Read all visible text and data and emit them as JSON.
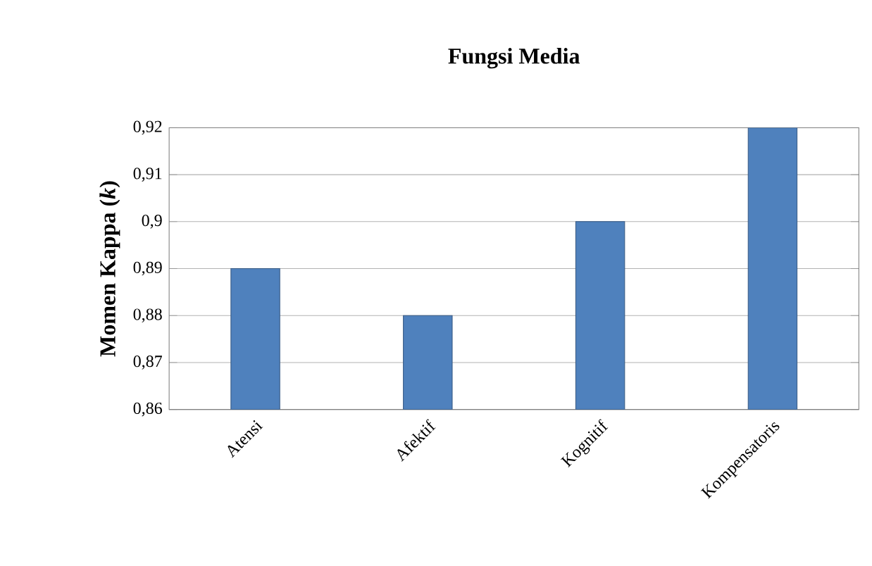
{
  "chart_data": {
    "type": "bar",
    "title": "Fungsi Media",
    "ylabel": "Momen Kappa (*k*)",
    "categories": [
      "Atensi",
      "Afektif",
      "Kognitif",
      "Kompensatoris"
    ],
    "values": [
      0.89,
      0.88,
      0.9,
      0.92
    ],
    "color": "#4f81bd",
    "ylim": [
      0.86,
      0.92
    ],
    "yticks": [
      {
        "value": 0.86,
        "label": "0,86"
      },
      {
        "value": 0.87,
        "label": "0,87"
      },
      {
        "value": 0.88,
        "label": "0,88"
      },
      {
        "value": 0.89,
        "label": "0,89"
      },
      {
        "value": 0.9,
        "label": "0,9"
      },
      {
        "value": 0.91,
        "label": "0,91"
      },
      {
        "value": 0.92,
        "label": "0,92"
      }
    ],
    "grid": "y"
  }
}
